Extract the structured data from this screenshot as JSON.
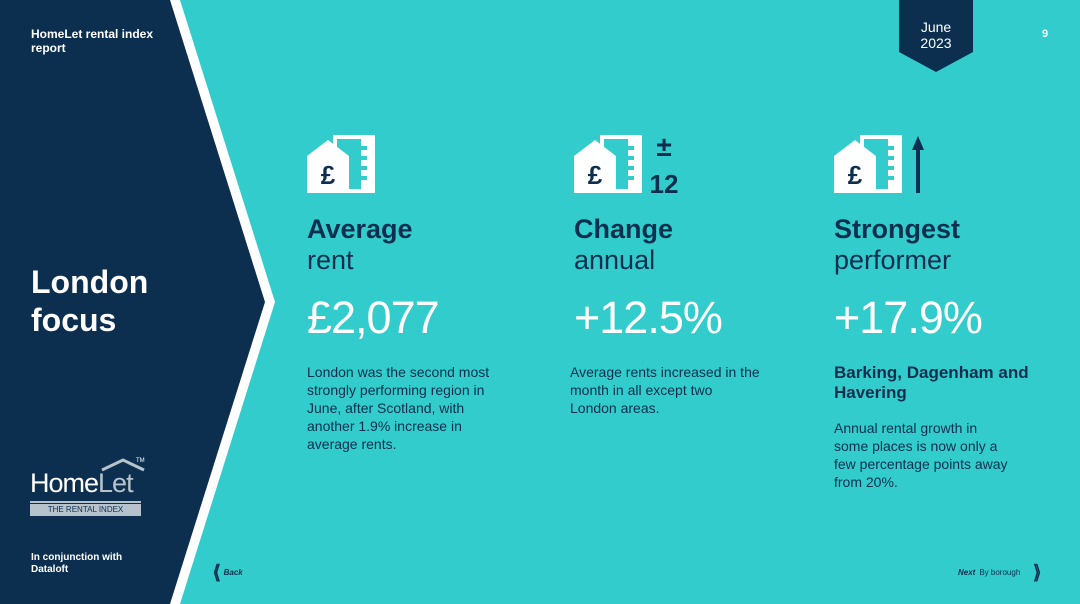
{
  "sidebar": {
    "report_title": "HomeLet rental index report",
    "section_title": "London focus",
    "logo": {
      "home": "Home",
      "let": "Let",
      "tm": "TM",
      "tagline": "THE RENTAL INDEX"
    },
    "partner_text": "In conjunction with Dataloft"
  },
  "header": {
    "month": "June",
    "year": "2023",
    "page_number": "9"
  },
  "stats": [
    {
      "icon": "house-pound-icon",
      "heading": "Average",
      "subheading": "rent",
      "value": "£2,077",
      "description": "London was the second most strongly performing region in June, after Scotland, with another 1.9% increase in average rents."
    },
    {
      "icon": "house-pound-change-icon",
      "icon_label_sign": "±",
      "icon_label_number": "12",
      "heading": "Change",
      "subheading": "annual",
      "value": "+12.5%",
      "description": "Average rents increased in the month in all except two London areas."
    },
    {
      "icon": "house-pound-up-icon",
      "heading": "Strongest",
      "subheading": "performer",
      "value": "+17.9%",
      "area_title": "Barking, Dagenham and Havering",
      "description": "Annual rental growth in some places is now only a few percentage points away from 20%."
    }
  ],
  "footer": {
    "back_label": "Back",
    "next_label": "Next",
    "next_detail": "By borough"
  },
  "colors": {
    "background": "#33cccc",
    "navy": "#0d2f4f",
    "white": "#ffffff",
    "logo_grey": "#b7c3cc"
  }
}
